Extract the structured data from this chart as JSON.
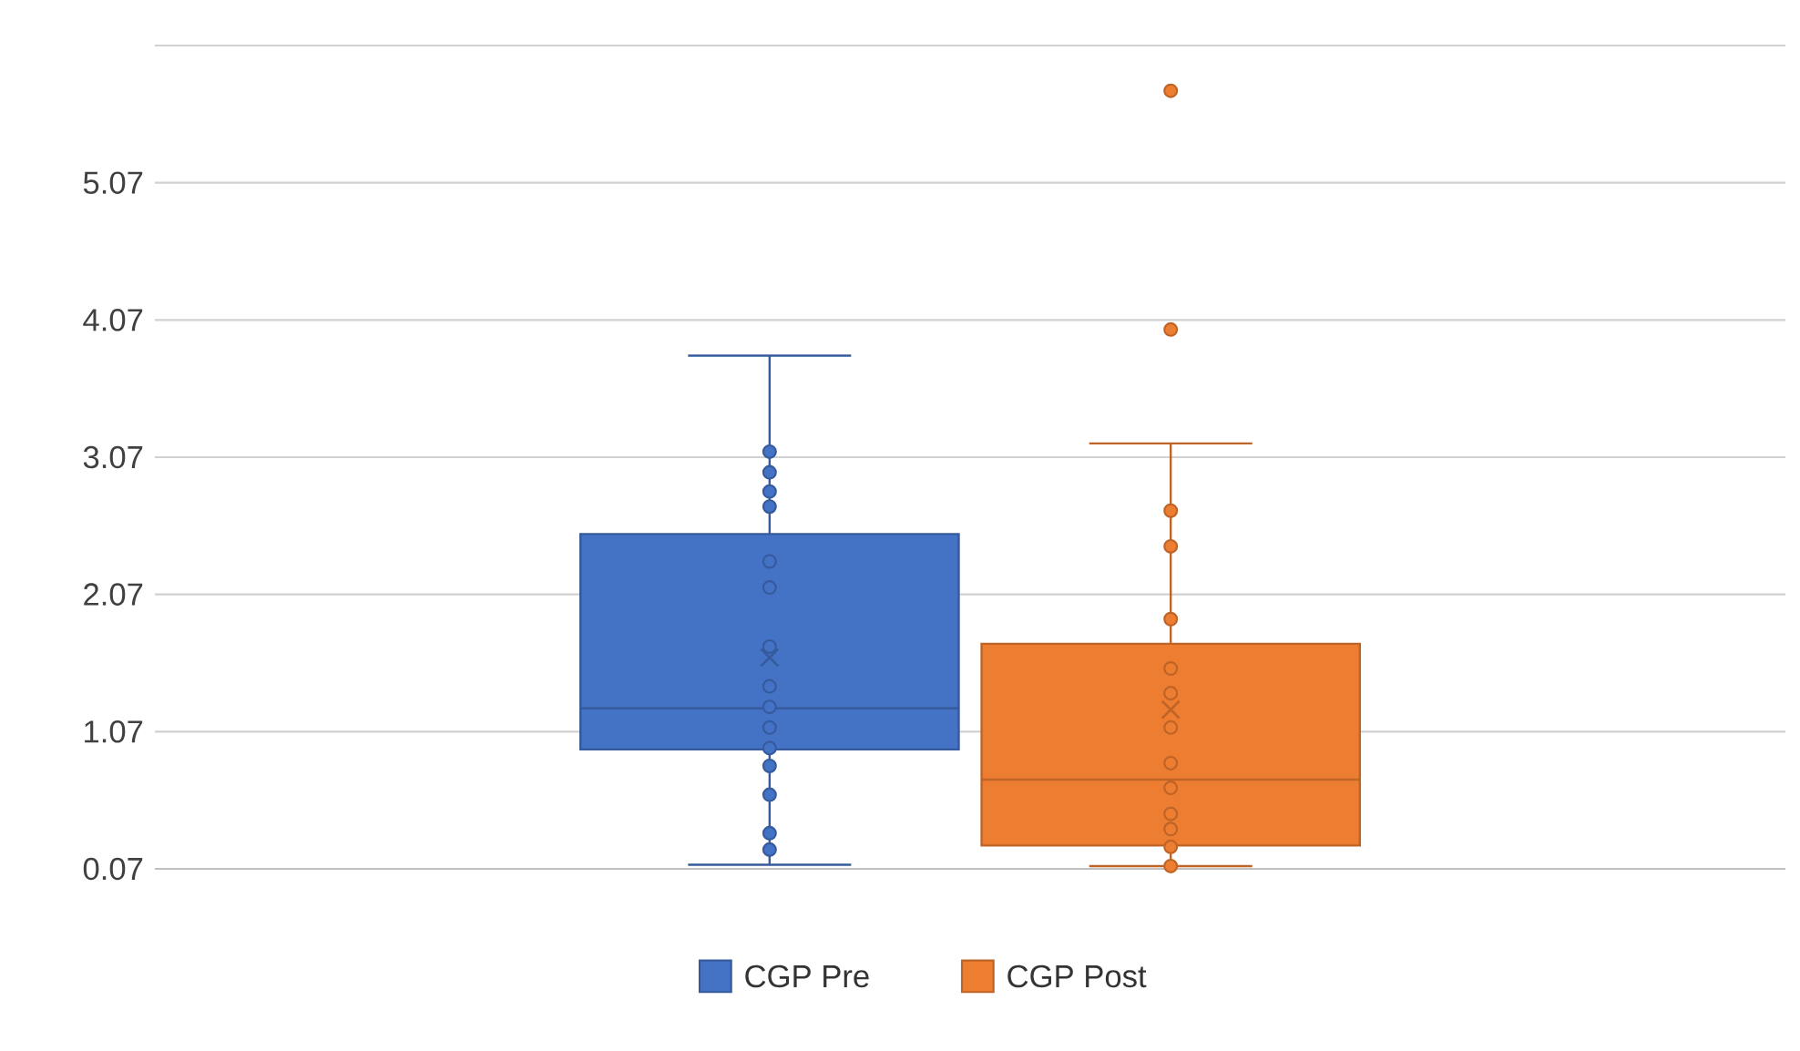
{
  "chart_data": {
    "type": "box",
    "categories": [
      null
    ],
    "ylim": [
      0.07,
      6.07
    ],
    "yticks": [
      0.07,
      1.07,
      2.07,
      3.07,
      4.07,
      5.07
    ],
    "grid": "y",
    "legend": "bottom",
    "marker": "circle",
    "series": [
      {
        "name": "CGP Pre",
        "color": "#4472c4",
        "boxes": [
          {
            "low": 0.1,
            "q1": 0.94,
            "median": 1.24,
            "q3": 2.51,
            "high": 3.81,
            "mean": 1.61,
            "outliers": [
              3.11,
              2.96,
              2.82,
              2.71,
              2.31,
              2.12,
              1.69,
              1.4,
              1.25,
              1.1,
              0.95,
              0.82,
              0.61,
              0.33,
              0.21
            ]
          }
        ]
      },
      {
        "name": "CGP Post",
        "color": "#ed7d31",
        "boxes": [
          {
            "low": 0.09,
            "q1": 0.24,
            "median": 0.72,
            "q3": 1.71,
            "high": 3.17,
            "mean": 1.23,
            "outliers": [
              5.74,
              4.0,
              2.68,
              2.42,
              1.89,
              1.53,
              1.35,
              1.1,
              0.84,
              0.66,
              0.47,
              0.36,
              0.23,
              0.09
            ]
          }
        ]
      }
    ]
  }
}
